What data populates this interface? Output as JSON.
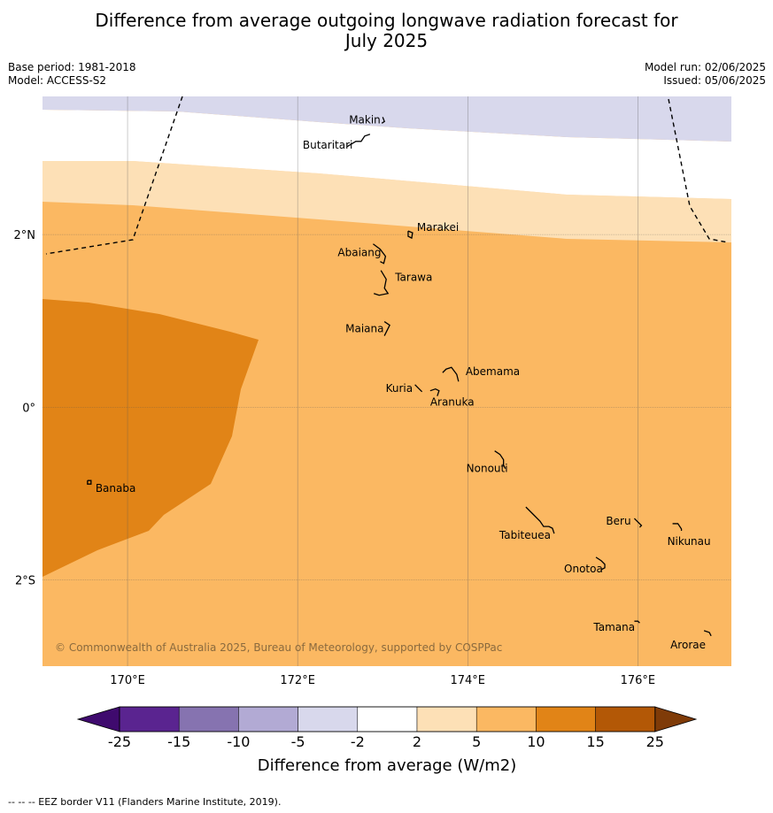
{
  "title": {
    "line1": "Difference from average outgoing longwave radiation forecast for",
    "line2": "July 2025"
  },
  "meta": {
    "base_period": "Base period: 1981-2018",
    "model": "Model: ACCESS-S2",
    "model_run": "Model run: 02/06/2025",
    "issued": "Issued: 05/06/2025"
  },
  "map": {
    "lon_range": [
      169,
      177.1
    ],
    "lat_range": [
      -3.0,
      3.6
    ],
    "lon_ticks": [
      {
        "value": 170,
        "label": "170°E"
      },
      {
        "value": 172,
        "label": "172°E"
      },
      {
        "value": 174,
        "label": "174°E"
      },
      {
        "value": 176,
        "label": "176°E"
      }
    ],
    "lat_ticks": [
      {
        "value": 2,
        "label": "2°N"
      },
      {
        "value": 0,
        "label": "0°"
      },
      {
        "value": -2,
        "label": "2°S"
      }
    ],
    "copyright": "© Commonwealth of Australia 2025, Bureau of Meteorology, supported by COSPPac",
    "islands": [
      {
        "name": "Makin",
        "lon": 173.0,
        "lat": 3.33
      },
      {
        "name": "Butaritari",
        "lon": 172.83,
        "lat": 3.1
      },
      {
        "name": "Marakei",
        "lon": 173.32,
        "lat": 2.0
      },
      {
        "name": "Abaiang",
        "lon": 172.95,
        "lat": 1.83
      },
      {
        "name": "Tarawa",
        "lon": 173.0,
        "lat": 1.42
      },
      {
        "name": "Maiana",
        "lon": 173.02,
        "lat": 0.95
      },
      {
        "name": "Abemama",
        "lon": 173.85,
        "lat": 0.4
      },
      {
        "name": "Kuria",
        "lon": 173.4,
        "lat": 0.22
      },
      {
        "name": "Aranuka",
        "lon": 173.6,
        "lat": 0.17
      },
      {
        "name": "Nonouti",
        "lon": 174.4,
        "lat": -0.65
      },
      {
        "name": "Tabiteuea",
        "lon": 174.85,
        "lat": -1.3
      },
      {
        "name": "Beru",
        "lon": 175.98,
        "lat": -1.33
      },
      {
        "name": "Nikunau",
        "lon": 176.45,
        "lat": -1.37
      },
      {
        "name": "Onotoa",
        "lon": 175.57,
        "lat": -1.82
      },
      {
        "name": "Tamana",
        "lon": 175.98,
        "lat": -2.5
      },
      {
        "name": "Arorae",
        "lon": 176.82,
        "lat": -2.65
      },
      {
        "name": "Banaba",
        "lon": 169.55,
        "lat": -0.87
      }
    ]
  },
  "legend": {
    "ticks": [
      "-25",
      "-15",
      "-10",
      "-5",
      "-2",
      "2",
      "5",
      "10",
      "15",
      "25"
    ],
    "colors": [
      "#3f0a6e",
      "#5a2490",
      "#8673b0",
      "#b2aad4",
      "#d8d8ec",
      "#ffffff",
      "#fde0b6",
      "#fbb862",
      "#e18417",
      "#b35806",
      "#7f3b08"
    ],
    "label": "Difference from average (W/m2)"
  },
  "footer": "--  --  -- EEZ border V11 (Flanders Marine Institute, 2019)."
}
